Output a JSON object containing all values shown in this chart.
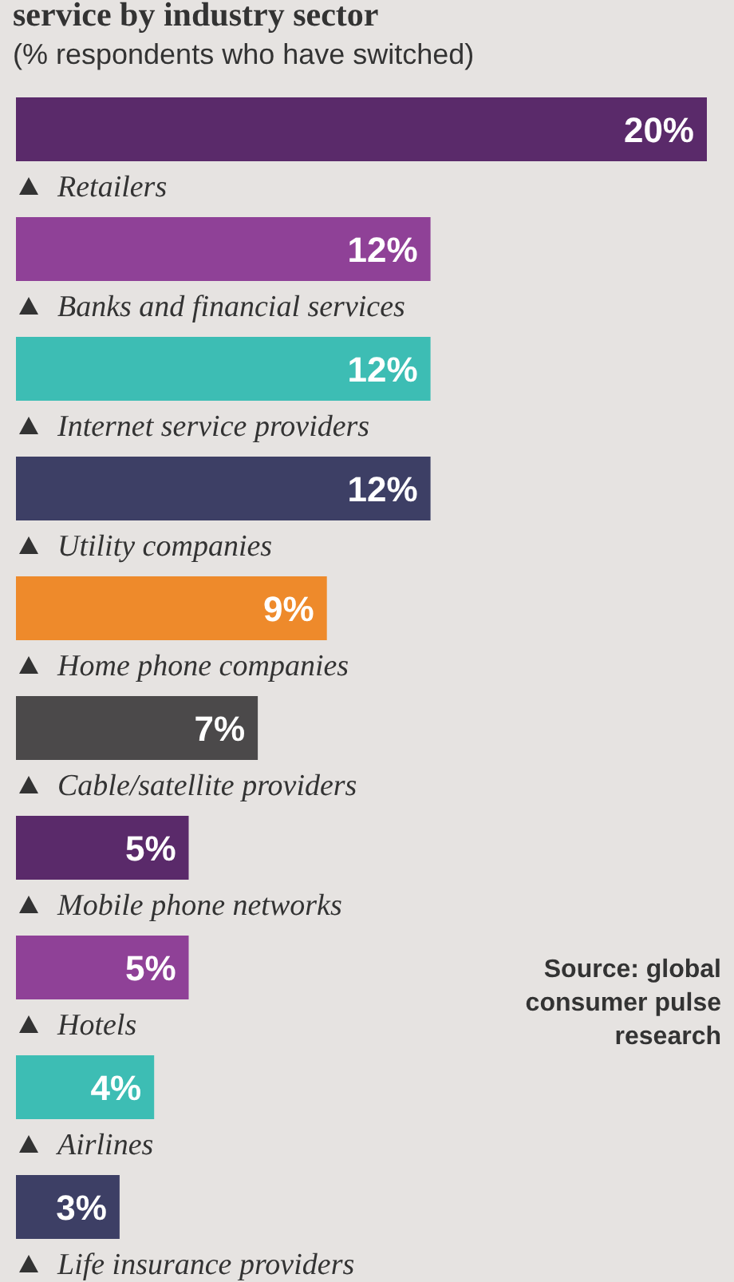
{
  "chart_data": {
    "type": "bar",
    "orientation": "horizontal",
    "title": "service by industry sector",
    "subtitle": "(% respondents who have switched)",
    "categories": [
      "Retailers",
      "Banks and financial services",
      "Internet service providers",
      "Utility companies",
      "Home phone companies",
      "Cable/satellite providers",
      "Mobile phone networks",
      "Hotels",
      "Airlines",
      "Life insurance providers"
    ],
    "values": [
      20,
      12,
      12,
      12,
      9,
      7,
      5,
      5,
      4,
      3
    ],
    "colors": [
      "#5a2a6a",
      "#8f4197",
      "#3dbdb4",
      "#3d3f65",
      "#ee8a2b",
      "#4b494a",
      "#5a2a6a",
      "#8f4197",
      "#3dbdb4",
      "#3d3f65"
    ],
    "value_labels": [
      "20%",
      "12%",
      "12%",
      "12%",
      "9%",
      "7%",
      "5%",
      "5%",
      "4%",
      "3%"
    ],
    "annotations": [
      "Source: global consumer pulse research"
    ]
  }
}
